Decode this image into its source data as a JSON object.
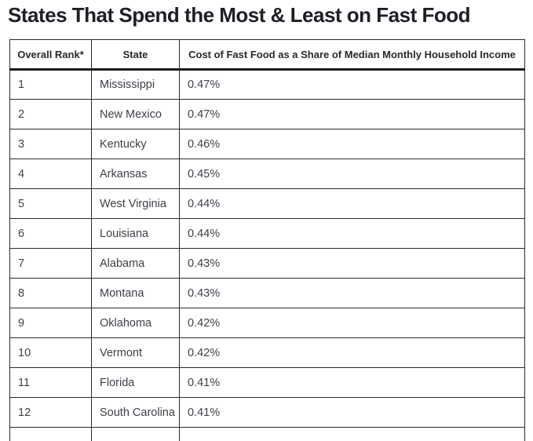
{
  "page": {
    "title": "States That Spend the Most & Least on Fast Food"
  },
  "table": {
    "columns": [
      "Overall Rank*",
      "State",
      "Cost of Fast Food as a Share of Median Monthly Household Income"
    ],
    "rows": [
      {
        "rank": "1",
        "state": "Mississippi",
        "value": "0.47%"
      },
      {
        "rank": "2",
        "state": "New Mexico",
        "value": "0.47%"
      },
      {
        "rank": "3",
        "state": "Kentucky",
        "value": "0.46%"
      },
      {
        "rank": "4",
        "state": "Arkansas",
        "value": "0.45%"
      },
      {
        "rank": "5",
        "state": "West Virginia",
        "value": "0.44%"
      },
      {
        "rank": "6",
        "state": "Louisiana",
        "value": "0.44%"
      },
      {
        "rank": "7",
        "state": "Alabama",
        "value": "0.43%"
      },
      {
        "rank": "8",
        "state": "Montana",
        "value": "0.43%"
      },
      {
        "rank": "9",
        "state": "Oklahoma",
        "value": "0.42%"
      },
      {
        "rank": "10",
        "state": "Vermont",
        "value": "0.42%"
      },
      {
        "rank": "11",
        "state": "Florida",
        "value": "0.41%"
      },
      {
        "rank": "12",
        "state": "South Carolina",
        "value": "0.41%"
      }
    ]
  },
  "chart_data": {
    "type": "table",
    "title": "States That Spend the Most & Least on Fast Food",
    "columns": [
      "Overall Rank*",
      "State",
      "Cost of Fast Food as a Share of Median Monthly Household Income"
    ],
    "rows": [
      [
        1,
        "Mississippi",
        "0.47%"
      ],
      [
        2,
        "New Mexico",
        "0.47%"
      ],
      [
        3,
        "Kentucky",
        "0.46%"
      ],
      [
        4,
        "Arkansas",
        "0.45%"
      ],
      [
        5,
        "West Virginia",
        "0.44%"
      ],
      [
        6,
        "Louisiana",
        "0.44%"
      ],
      [
        7,
        "Alabama",
        "0.43%"
      ],
      [
        8,
        "Montana",
        "0.43%"
      ],
      [
        9,
        "Oklahoma",
        "0.42%"
      ],
      [
        10,
        "Vermont",
        "0.42%"
      ],
      [
        11,
        "Florida",
        "0.41%"
      ],
      [
        12,
        "South Carolina",
        "0.41%"
      ]
    ],
    "notes": "Table is clipped at the bottom of the screenshot; a 13th row begins but is not visible.",
    "colors": {
      "title_text": "#1e1e26",
      "cell_text": "#3e3e48",
      "border": "#2b2b2e",
      "background": "#ffffff"
    }
  }
}
